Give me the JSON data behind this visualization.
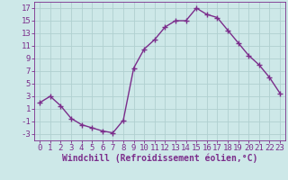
{
  "x": [
    0,
    1,
    2,
    3,
    4,
    5,
    6,
    7,
    8,
    9,
    10,
    11,
    12,
    13,
    14,
    15,
    16,
    17,
    18,
    19,
    20,
    21,
    22,
    23
  ],
  "y": [
    2,
    3,
    1.5,
    -0.5,
    -1.5,
    -2,
    -2.5,
    -2.8,
    -0.8,
    7.5,
    10.5,
    12,
    14,
    15,
    15,
    17,
    16,
    15.5,
    13.5,
    11.5,
    9.5,
    8,
    6,
    3.5
  ],
  "line_color": "#7b2d8b",
  "marker": "+",
  "marker_size": 4,
  "marker_linewidth": 1.0,
  "line_width": 1.0,
  "background_color": "#cde8e8",
  "grid_color": "#b0d0d0",
  "xlabel": "Windchill (Refroidissement éolien,°C)",
  "xlabel_fontsize": 7,
  "tick_fontsize": 6.5,
  "ylim": [
    -4,
    18
  ],
  "xlim": [
    -0.5,
    23.5
  ],
  "yticks": [
    -3,
    -1,
    1,
    3,
    5,
    7,
    9,
    11,
    13,
    15,
    17
  ],
  "xticks": [
    0,
    1,
    2,
    3,
    4,
    5,
    6,
    7,
    8,
    9,
    10,
    11,
    12,
    13,
    14,
    15,
    16,
    17,
    18,
    19,
    20,
    21,
    22,
    23
  ]
}
